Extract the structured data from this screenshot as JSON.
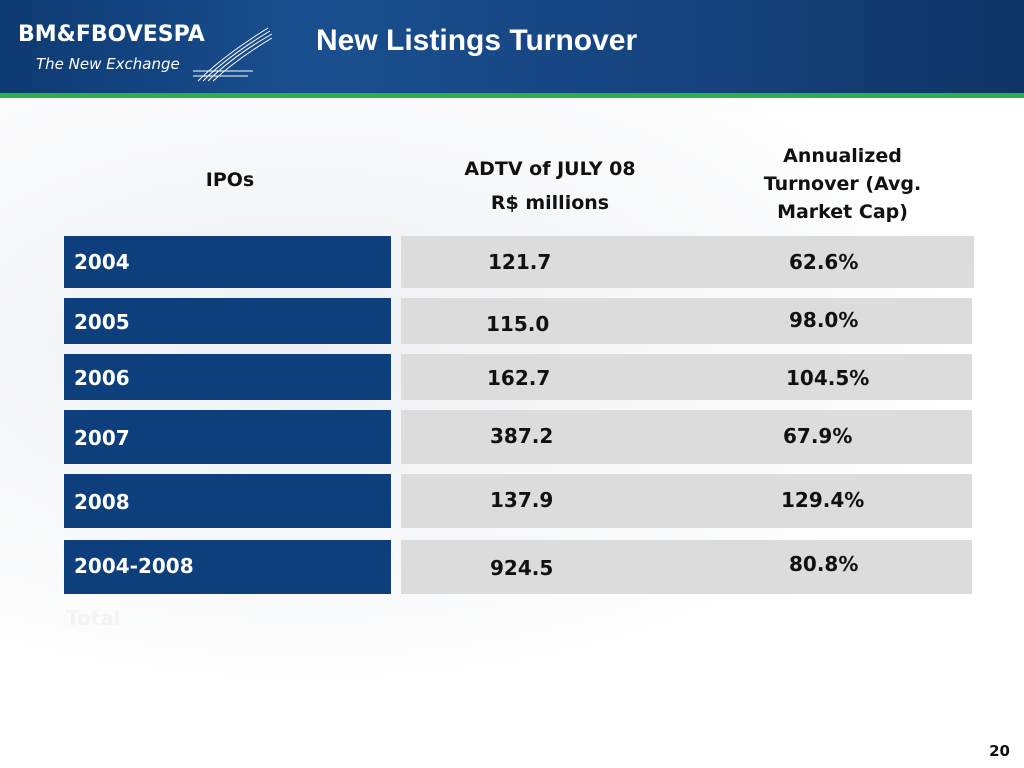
{
  "header": {
    "logo_main": "BM&FBOVESPA",
    "logo_sub": "The New Exchange",
    "title": "New Listings Turnover"
  },
  "columns": {
    "ipos": "IPOs",
    "adtv_line1": "ADTV of JULY 08",
    "adtv_line2": "R$ millions",
    "turnover_line1": "Annualized",
    "turnover_line2": "Turnover (Avg.",
    "turnover_line3": "Market Cap)"
  },
  "rows": [
    {
      "label": "2004",
      "adtv": "121.7",
      "turnover": "62.6%"
    },
    {
      "label": "2005",
      "adtv": "115.0",
      "turnover": "98.0%"
    },
    {
      "label": "2006",
      "adtv": "162.7",
      "turnover": "104.5%"
    },
    {
      "label": "2007",
      "adtv": "387.2",
      "turnover": "67.9%"
    },
    {
      "label": "2008",
      "adtv": "137.9",
      "turnover": "129.4%"
    },
    {
      "label": "2004-2008",
      "adtv": "924.5",
      "turnover": "80.8%"
    }
  ],
  "watermark": "Total",
  "page_number": "20",
  "colors": {
    "header_blue": "#15427c",
    "accent_green": "#2bb04a",
    "row_blue": "#0d3f7c",
    "row_gray": "#dcdcdc"
  }
}
